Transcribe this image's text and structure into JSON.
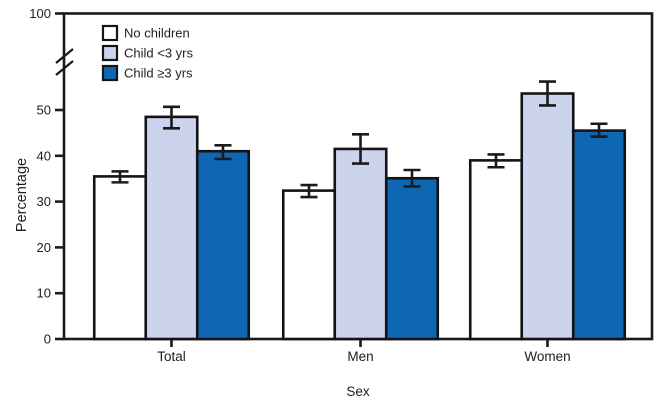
{
  "chart_data": {
    "type": "bar",
    "title": "",
    "xlabel": "Sex",
    "ylabel": "Percentage",
    "categories": [
      "Total",
      "Men",
      "Women"
    ],
    "series": [
      {
        "name": "No children",
        "fill": "#ffffff",
        "values": [
          35.5,
          32.4,
          39.0
        ],
        "ci": [
          [
            34.2,
            36.6
          ],
          [
            31.0,
            33.6
          ],
          [
            37.5,
            40.3
          ]
        ]
      },
      {
        "name": "Child <3 yrs",
        "fill": "#ccd3ec",
        "values": [
          48.5,
          41.5,
          53.6
        ],
        "ci": [
          [
            46.0,
            50.7
          ],
          [
            38.3,
            44.7
          ],
          [
            51.0,
            56.2
          ]
        ]
      },
      {
        "name": "Child ≥3 yrs",
        "fill": "#0e67b2",
        "values": [
          41.0,
          35.1,
          45.5
        ],
        "ci": [
          [
            39.3,
            42.3
          ],
          [
            33.3,
            36.9
          ],
          [
            44.2,
            47.0
          ]
        ]
      }
    ],
    "y_ticks": [
      0,
      10,
      20,
      30,
      40,
      50,
      100
    ],
    "ylim": [
      0,
      100
    ],
    "axis_break": {
      "between": [
        55,
        100
      ]
    },
    "grid": false,
    "legend_position": "top-left-inside",
    "error_bars": true,
    "colors": {
      "axis": "#1a1a1a",
      "bar_outline": "#141418",
      "text": "#1d1d25",
      "background": "#ffffff"
    }
  }
}
